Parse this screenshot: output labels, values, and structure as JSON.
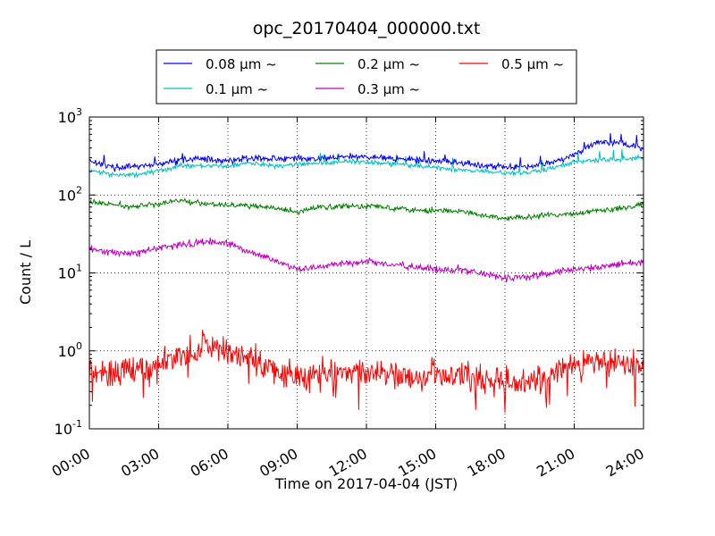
{
  "chart_data": {
    "type": "line",
    "title": "opc_20170404_000000.txt",
    "xlabel": "Time on 2017-04-04 (JST)",
    "ylabel": "Count / L",
    "yscale": "log",
    "ylim": [
      0.1,
      1000
    ],
    "xlim_hours": [
      0,
      24
    ],
    "grid": true,
    "legend_position": "top-center",
    "x_ticks": [
      "00:00",
      "03:00",
      "06:00",
      "09:00",
      "12:00",
      "15:00",
      "18:00",
      "21:00",
      "24:00"
    ],
    "y_ticks": [
      {
        "base": "10",
        "exp": "-1"
      },
      {
        "base": "10",
        "exp": "0"
      },
      {
        "base": "10",
        "exp": "1"
      },
      {
        "base": "10",
        "exp": "2"
      },
      {
        "base": "10",
        "exp": "3"
      }
    ],
    "x_hours": [
      0,
      1,
      2,
      3,
      4,
      5,
      6,
      7,
      8,
      9,
      10,
      11,
      12,
      13,
      14,
      15,
      16,
      17,
      18,
      19,
      20,
      21,
      22,
      23,
      24
    ],
    "series": [
      {
        "name": "0.08 μm ~",
        "color": "#0000ff",
        "values": [
          280,
          225,
          230,
          245,
          285,
          290,
          275,
          300,
          290,
          295,
          290,
          310,
          310,
          300,
          280,
          270,
          260,
          240,
          230,
          235,
          260,
          330,
          480,
          470,
          390
        ]
      },
      {
        "name": "0.1 μm ~",
        "color": "#00bfbf",
        "values": [
          205,
          185,
          180,
          205,
          240,
          235,
          235,
          260,
          235,
          245,
          255,
          270,
          265,
          250,
          240,
          225,
          210,
          200,
          190,
          195,
          220,
          265,
          280,
          285,
          300
        ]
      },
      {
        "name": "0.2 μm ~",
        "color": "#008000",
        "values": [
          82,
          75,
          70,
          78,
          85,
          78,
          75,
          72,
          68,
          60,
          70,
          72,
          72,
          70,
          65,
          63,
          62,
          55,
          50,
          52,
          55,
          58,
          62,
          68,
          75
        ]
      },
      {
        "name": "0.3 μm ~",
        "color": "#bf00bf",
        "values": [
          20,
          18,
          18,
          21,
          23,
          25,
          24,
          18,
          15,
          11,
          12,
          13,
          14,
          13,
          12,
          11,
          11,
          10,
          8.5,
          9,
          10,
          11,
          12,
          13,
          14
        ]
      },
      {
        "name": "0.5 μm ~",
        "color": "#ff0000",
        "values": [
          0.55,
          0.55,
          0.6,
          0.7,
          0.85,
          1.1,
          1.0,
          0.8,
          0.55,
          0.45,
          0.55,
          0.55,
          0.5,
          0.5,
          0.5,
          0.5,
          0.45,
          0.45,
          0.4,
          0.4,
          0.5,
          0.65,
          0.7,
          0.7,
          0.65
        ]
      }
    ]
  }
}
